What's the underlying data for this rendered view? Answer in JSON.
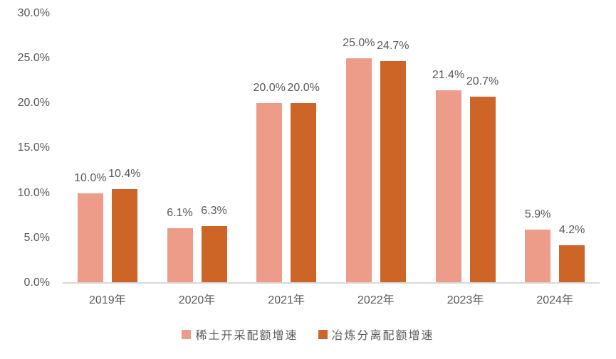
{
  "chart_data": {
    "type": "bar",
    "title": "",
    "categories": [
      "2019年",
      "2020年",
      "2021年",
      "2022年",
      "2023年",
      "2024年"
    ],
    "series": [
      {
        "name": "稀土开采配额增速",
        "color": "#EC9C89",
        "values": [
          10.0,
          6.1,
          20.0,
          25.0,
          21.4,
          5.9
        ],
        "labels": [
          "10.0%",
          "6.1%",
          "20.0%",
          "25.0%",
          "21.4%",
          "5.9%"
        ]
      },
      {
        "name": "冶炼分离配额增速",
        "color": "#CD6527",
        "values": [
          10.4,
          6.3,
          20.0,
          24.7,
          20.7,
          4.2
        ],
        "labels": [
          "10.4%",
          "6.3%",
          "20.0%",
          "24.7%",
          "20.7%",
          "4.2%"
        ]
      }
    ],
    "yticks": [
      {
        "label": "30.0%",
        "value": 30
      },
      {
        "label": "25.0%",
        "value": 25
      },
      {
        "label": "20.0%",
        "value": 20
      },
      {
        "label": "15.0%",
        "value": 15
      },
      {
        "label": "10.0%",
        "value": 10
      },
      {
        "label": "5.0%",
        "value": 5
      },
      {
        "label": "0.0%",
        "value": 0
      }
    ],
    "ylim": [
      0,
      30
    ],
    "grid": false,
    "legend_position": "bottom",
    "colors": {
      "text": "#595959",
      "axis_line": "#d9d9d9",
      "background": "#ffffff"
    }
  }
}
